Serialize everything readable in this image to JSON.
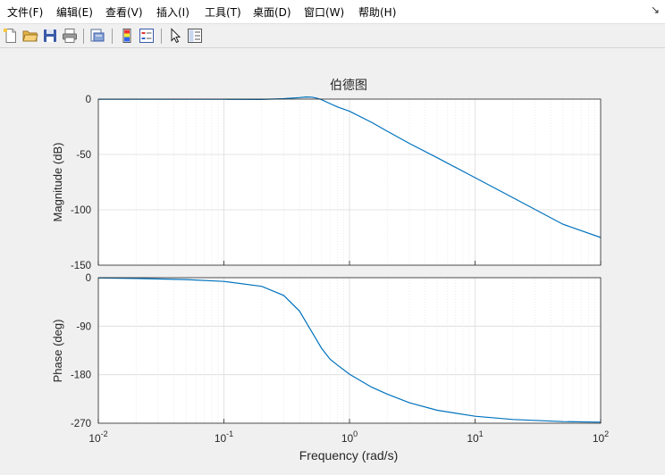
{
  "menu": [
    {
      "label": "文件(F)"
    },
    {
      "label": "编辑(E)"
    },
    {
      "label": "查看(V)"
    },
    {
      "label": "插入(I)"
    },
    {
      "label": "工具(T)"
    },
    {
      "label": "桌面(D)"
    },
    {
      "label": "窗口(W)"
    },
    {
      "label": "帮助(H)"
    }
  ],
  "menu_arrow": "↘",
  "toolbar_icons": [
    "new-file-icon",
    "open-folder-icon",
    "save-icon",
    "print-icon",
    "print-preview-icon",
    "colorbar-icon",
    "legend-icon",
    "pointer-icon",
    "property-inspector-icon"
  ],
  "colors": {
    "line": "#0072bd",
    "grid": "#dcdcdc",
    "axes": "#262626"
  },
  "chart_data": {
    "type": "line",
    "title": "伯德图",
    "xlabel": "Frequency  (rad/s)",
    "x_scale": "log",
    "xlim": [
      0.01,
      100
    ],
    "xticks": [
      0.01,
      0.1,
      1,
      10,
      100
    ],
    "grid": true,
    "panels": [
      {
        "ylabel": "Magnitude (dB)",
        "ylim": [
          -150,
          0
        ],
        "yticks": [
          0,
          -50,
          -100,
          -150
        ],
        "ytick_labels": [
          "0",
          "-50",
          "-100",
          "-150"
        ],
        "x": [
          0.01,
          0.03,
          0.1,
          0.2,
          0.3,
          0.4,
          0.45,
          0.5,
          0.55,
          0.6,
          0.7,
          0.8,
          1,
          1.5,
          2,
          3,
          5,
          10,
          20,
          50,
          100
        ],
        "y": [
          -0.1,
          -0.1,
          -0.2,
          -0.3,
          0.4,
          1.4,
          1.9,
          1.8,
          0.9,
          -0.6,
          -4,
          -7,
          -11,
          -21,
          -29,
          -40,
          -53,
          -71,
          -89,
          -113,
          -125
        ]
      },
      {
        "ylabel": "Phase (deg)",
        "ylim": [
          -270,
          0
        ],
        "yticks": [
          0,
          -90,
          -180,
          -270
        ],
        "ytick_labels": [
          "0",
          "-90",
          "-180",
          "-270"
        ],
        "x": [
          0.01,
          0.02,
          0.05,
          0.1,
          0.2,
          0.3,
          0.4,
          0.5,
          0.6,
          0.7,
          0.8,
          1,
          1.5,
          2,
          3,
          5,
          10,
          20,
          50,
          100
        ],
        "y": [
          -0.5,
          -1.5,
          -3.5,
          -7,
          -16,
          -33,
          -62,
          -100,
          -131,
          -151,
          -162,
          -179,
          -203,
          -216,
          -232,
          -246,
          -257,
          -263,
          -267,
          -268
        ]
      }
    ]
  }
}
